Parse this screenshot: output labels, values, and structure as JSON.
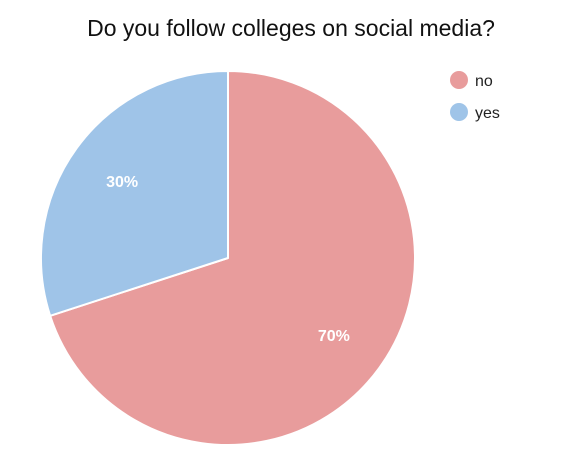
{
  "chart_data": {
    "type": "pie",
    "title": "Do you follow colleges on social media?",
    "categories": [
      "no",
      "yes"
    ],
    "values": [
      70,
      30
    ],
    "labels": [
      "70%",
      "30%"
    ],
    "colors": [
      "#e89c9c",
      "#9fc4e8"
    ],
    "legend": {
      "position": "top-right",
      "entries": [
        "no",
        "yes"
      ]
    }
  }
}
